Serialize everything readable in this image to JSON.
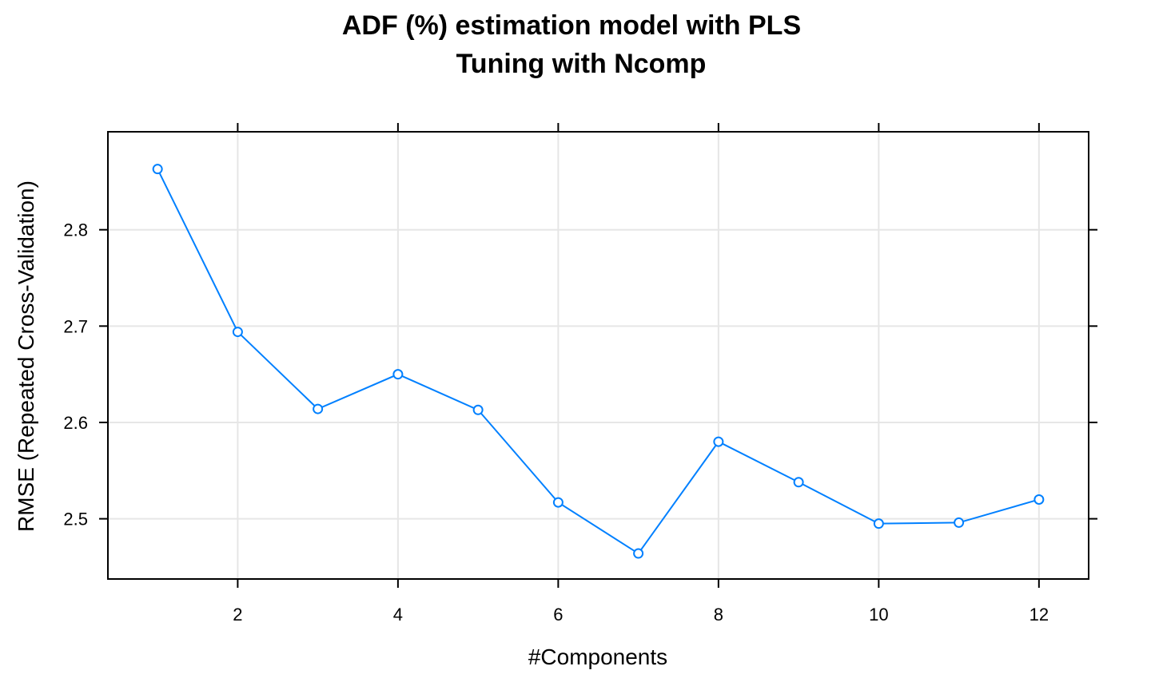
{
  "chart_data": {
    "type": "line",
    "title": "ADF (%) estimation model with PLS",
    "subtitle": "Tuning with Ncomp",
    "xlabel": "#Components",
    "ylabel": "RMSE (Repeated Cross-Validation)",
    "x": [
      1,
      2,
      3,
      4,
      5,
      6,
      7,
      8,
      9,
      10,
      11,
      12
    ],
    "series": [
      {
        "name": "RMSE",
        "values": [
          2.863,
          2.694,
          2.614,
          2.65,
          2.613,
          2.517,
          2.464,
          2.58,
          2.538,
          2.495,
          2.496,
          2.52
        ]
      }
    ],
    "xlim": [
      0.38,
      12.62
    ],
    "ylim": [
      2.4375,
      2.9017
    ],
    "xticks": [
      2,
      4,
      6,
      8,
      10,
      12
    ],
    "xtick_labels": [
      "2",
      "4",
      "6",
      "8",
      "10",
      "12"
    ],
    "yticks": [
      2.5,
      2.6,
      2.7,
      2.8
    ],
    "ytick_labels": [
      "2.5",
      "2.6",
      "2.7",
      "2.8"
    ],
    "grid": true,
    "colors": {
      "line": "#0080ff",
      "grid": "#e6e6e6",
      "axis": "#000000"
    }
  }
}
